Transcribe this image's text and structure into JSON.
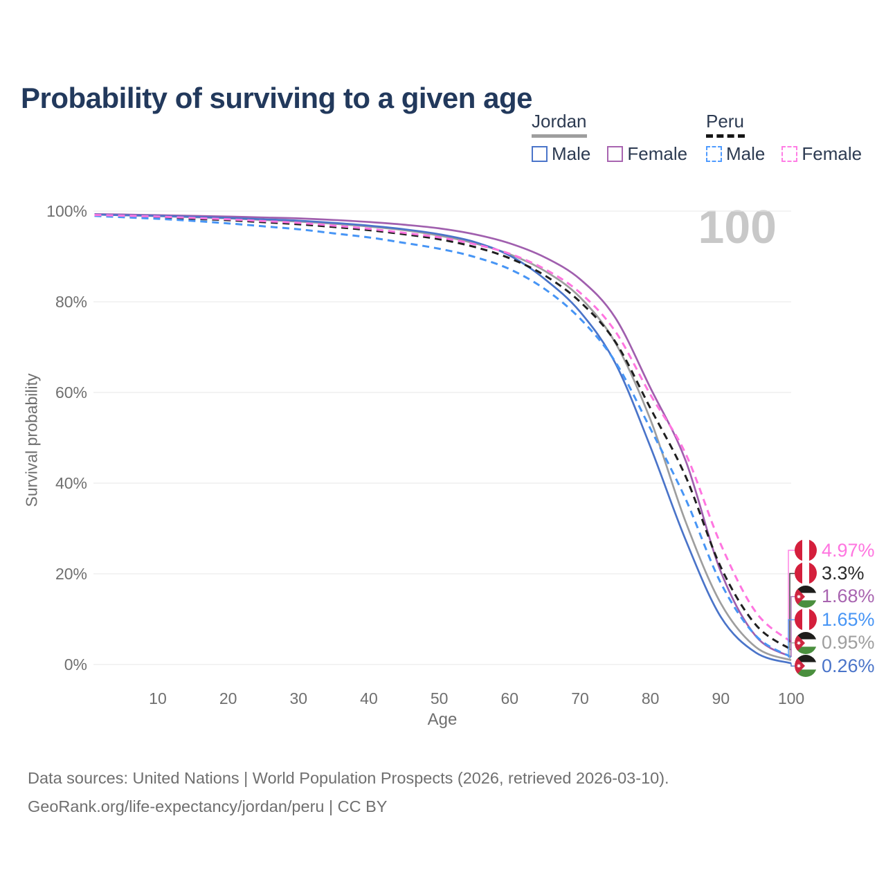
{
  "title": "Probability of surviving to a given age",
  "watermark_age": "100",
  "legend": {
    "groups": [
      {
        "name": "Jordan",
        "line_style": "solid",
        "underline_color": "#9e9e9e",
        "items": [
          {
            "label": "Male",
            "color": "#4a74c9",
            "dashed": false
          },
          {
            "label": "Female",
            "color": "#a864b0",
            "dashed": false
          }
        ]
      },
      {
        "name": "Peru",
        "line_style": "dashed",
        "underline_color": "#161616",
        "items": [
          {
            "label": "Male",
            "color": "#4f9bff",
            "dashed": true
          },
          {
            "label": "Female",
            "color": "#ff7de5",
            "dashed": true
          }
        ]
      }
    ]
  },
  "chart_data": {
    "type": "line",
    "title": "Probability of surviving to a given age",
    "xlabel": "Age",
    "ylabel": "Survival probability",
    "xlim": [
      1,
      100
    ],
    "ylim": [
      0,
      100
    ],
    "grid": true,
    "legend_position": "top-right",
    "x_ticks": [
      10,
      20,
      30,
      40,
      50,
      60,
      70,
      80,
      90,
      100
    ],
    "y_ticks": [
      {
        "value": 100,
        "label": "100%"
      },
      {
        "value": 80,
        "label": "80%"
      },
      {
        "value": 60,
        "label": "60%"
      },
      {
        "value": 40,
        "label": "40%"
      },
      {
        "value": 20,
        "label": "20%"
      },
      {
        "value": 0,
        "label": "0%"
      }
    ],
    "ages": [
      1,
      5,
      10,
      15,
      20,
      25,
      30,
      35,
      40,
      45,
      50,
      55,
      60,
      65,
      70,
      75,
      80,
      85,
      90,
      95,
      100
    ],
    "series": [
      {
        "name": "Jordan",
        "country": "Jordan",
        "style": "solid",
        "color": "#9e9e9e",
        "end_value_pct": 0.95,
        "values": [
          99.25,
          99.1,
          98.9,
          98.65,
          98.4,
          98.05,
          97.7,
          97.2,
          96.6,
          95.8,
          94.6,
          92.9,
          90.5,
          86.8,
          81.0,
          71.0,
          54.0,
          31.5,
          13.5,
          3.8,
          0.95
        ]
      },
      {
        "name": "Jordan Female",
        "country": "Jordan",
        "sex": "Female",
        "style": "solid",
        "color": "#a05fae",
        "end_value_pct": 1.68,
        "values": [
          99.35,
          99.25,
          99.1,
          98.95,
          98.8,
          98.6,
          98.4,
          98.05,
          97.6,
          97.0,
          96.2,
          94.9,
          92.9,
          89.8,
          85.0,
          76.5,
          61.0,
          45.0,
          20.5,
          6.2,
          1.68
        ]
      },
      {
        "name": "Jordan Male",
        "country": "Jordan",
        "sex": "Male",
        "style": "solid",
        "color": "#4a74c9",
        "end_value_pct": 0.26,
        "values": [
          99.25,
          99.1,
          98.95,
          98.75,
          98.5,
          98.2,
          97.9,
          97.4,
          96.8,
          96.0,
          94.9,
          93.2,
          90.2,
          85.0,
          77.8,
          66.5,
          48.0,
          27.5,
          10.5,
          2.6,
          0.26
        ]
      },
      {
        "name": "Peru",
        "country": "Peru",
        "style": "dashed",
        "color": "#1f1f1f",
        "end_value_pct": 3.3,
        "values": [
          99.05,
          98.85,
          98.6,
          98.3,
          98.0,
          97.55,
          97.1,
          96.5,
          95.8,
          94.9,
          93.8,
          92.1,
          89.6,
          85.8,
          80.0,
          71.2,
          56.5,
          41.5,
          21.5,
          8.7,
          3.3
        ]
      },
      {
        "name": "Peru Male",
        "country": "Peru",
        "sex": "Male",
        "style": "dashed",
        "color": "#4795f5",
        "end_value_pct": 1.65,
        "values": [
          98.95,
          98.65,
          98.3,
          97.85,
          97.3,
          96.65,
          96.0,
          95.1,
          94.2,
          93.0,
          91.7,
          89.9,
          87.2,
          82.8,
          76.3,
          66.8,
          52.0,
          36.5,
          18.0,
          6.3,
          1.65
        ]
      },
      {
        "name": "Peru Female",
        "country": "Peru",
        "sex": "Female",
        "style": "dashed",
        "color": "#ff75e0",
        "end_value_pct": 4.97,
        "values": [
          99.15,
          99.0,
          98.8,
          98.5,
          98.2,
          97.8,
          97.4,
          96.8,
          96.1,
          95.2,
          94.2,
          92.7,
          90.6,
          87.2,
          82.0,
          73.5,
          59.5,
          46.5,
          26.5,
          11.5,
          4.97
        ]
      }
    ]
  },
  "end_labels": [
    {
      "text": "4.97%",
      "series": "Peru Female",
      "flag": "peru",
      "color": "#ff75e0"
    },
    {
      "text": "3.3%",
      "series": "Peru",
      "flag": "peru",
      "color": "#2b2b2b"
    },
    {
      "text": "1.68%",
      "series": "Jordan Female",
      "flag": "jordan",
      "color": "#a864b0"
    },
    {
      "text": "1.65%",
      "series": "Peru Male",
      "flag": "peru",
      "color": "#4795f5"
    },
    {
      "text": "0.95%",
      "series": "Jordan",
      "flag": "jordan",
      "color": "#9e9e9e"
    },
    {
      "text": "0.26%",
      "series": "Jordan Male",
      "flag": "jordan",
      "color": "#4a74c9"
    }
  ],
  "flag_colors": {
    "peru_red": "#d41f3c",
    "jordan_black": "#1d1d1b",
    "jordan_green": "#4a8f3e",
    "jordan_red": "#ce2540"
  },
  "footer": {
    "line1": "Data sources: United Nations | World Population Prospects (2026, retrieved 2026-03-10).",
    "line2": "GeoRank.org/life-expectancy/jordan/peru | CC BY"
  }
}
